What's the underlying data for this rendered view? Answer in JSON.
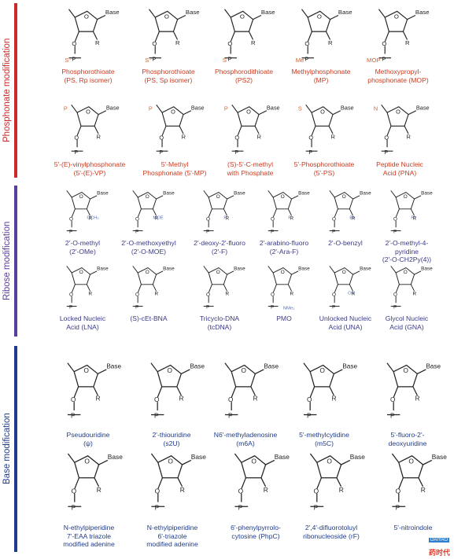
{
  "sections": [
    {
      "label": "Phosphonate modification",
      "color": "#cc2a2a"
    },
    {
      "label": "Ribose modification",
      "color": "#5a3e9b"
    },
    {
      "label": "Base modification",
      "color": "#1f3c8a"
    }
  ],
  "colors": {
    "phosphonate": "#cc3b1f",
    "ribose": "#3a3a86",
    "base": "#1f3c8a",
    "mod_orange": "#d9602a",
    "mod_blue": "#5b6fb5"
  },
  "phosphonate_row1": [
    {
      "name_html": [
        "Phosphorothioate",
        "(PS, Rp isomer)"
      ]
    },
    {
      "name_html": [
        "Phosphorothioate",
        "(PS, Sp isomer)"
      ]
    },
    {
      "name_html": [
        "Phosphorodithioate",
        "(PS2)"
      ]
    },
    {
      "name_html": [
        "Methylphosphonate",
        "(MP)"
      ]
    },
    {
      "name_html": [
        "Methoxypropyl-",
        "phosphonate (MOP)"
      ]
    }
  ],
  "phosphonate_row2": [
    {
      "name_html": [
        "5'-(E)-vinylphosphonate",
        "(5'-(E)-VP)"
      ]
    },
    {
      "name_html": [
        "5'-Methyl",
        "Phosphonate (5'-MP)"
      ]
    },
    {
      "name_html": [
        "(S)-5'-C-methyl",
        "with Phosphate"
      ]
    },
    {
      "name_html": [
        "5'-Phosphorothioate",
        "(5'-PS)"
      ]
    },
    {
      "name_html": [
        "Peptide Nucleic",
        "Acid (PNA)"
      ]
    }
  ],
  "ribose_row1": [
    {
      "name_html": [
        "2'-O-methyl",
        "(2'-OMe)"
      ]
    },
    {
      "name_html": [
        "2'-O-methoxyethyl",
        "(2'-O-MOE)"
      ]
    },
    {
      "name_html": [
        "2'-deoxy-2'-fluoro",
        "(2'-F)"
      ]
    },
    {
      "name_html": [
        "2'-arabino-fluoro",
        "(2'-Ara-F)"
      ]
    },
    {
      "name_html": [
        "2'-O-benzyl"
      ]
    },
    {
      "name_html": [
        "2'-O-methyl-4-pyridine",
        "(2'-O-CH2Py(4))"
      ]
    }
  ],
  "ribose_row2": [
    {
      "name_html": [
        "Locked Nucleic",
        "Acid (LNA)"
      ]
    },
    {
      "name_html": [
        "(S)-cEt-BNA"
      ]
    },
    {
      "name_html": [
        "Tricyclo-DNA",
        "(tcDNA)"
      ]
    },
    {
      "name_html": [
        "PMO"
      ]
    },
    {
      "name_html": [
        "Unlocked Nucleic",
        "Acid (UNA)"
      ]
    },
    {
      "name_html": [
        "Glycol Nucleic",
        "Acid (GNA)"
      ]
    }
  ],
  "base_row1": [
    {
      "name_html": [
        "Pseudouridine",
        "(ψ)"
      ]
    },
    {
      "name_html": [
        "2'-thiouridine",
        "(s2U)"
      ]
    },
    {
      "name_html": [
        "N6'-methyladenosine",
        "(m6A)"
      ]
    },
    {
      "name_html": [
        "5'-methylcytidine",
        "(m5C)"
      ]
    },
    {
      "name_html": [
        "5'-fluoro-2'-",
        "deoxyuridine"
      ]
    }
  ],
  "base_row2": [
    {
      "name_html": [
        "N-ethylpiperidine",
        "7'-EAA triazole",
        "modified adenine"
      ]
    },
    {
      "name_html": [
        "N-ethylpiperidine",
        "6'-triazole",
        "modified adenine"
      ]
    },
    {
      "name_html": [
        "6'-phenylpyrrolo-",
        "cytosine (PhpC)"
      ]
    },
    {
      "name_html": [
        "2',4'-difluorotoluyl",
        "ribonucleoside (rF)"
      ]
    },
    {
      "name_html": [
        "5'-nitroindole"
      ]
    }
  ],
  "struct_labels": {
    "base": "Base",
    "r": "R",
    "o": "O",
    "p": "P"
  },
  "watermark": {
    "box": "DAIYAO",
    "text": "药时代"
  }
}
